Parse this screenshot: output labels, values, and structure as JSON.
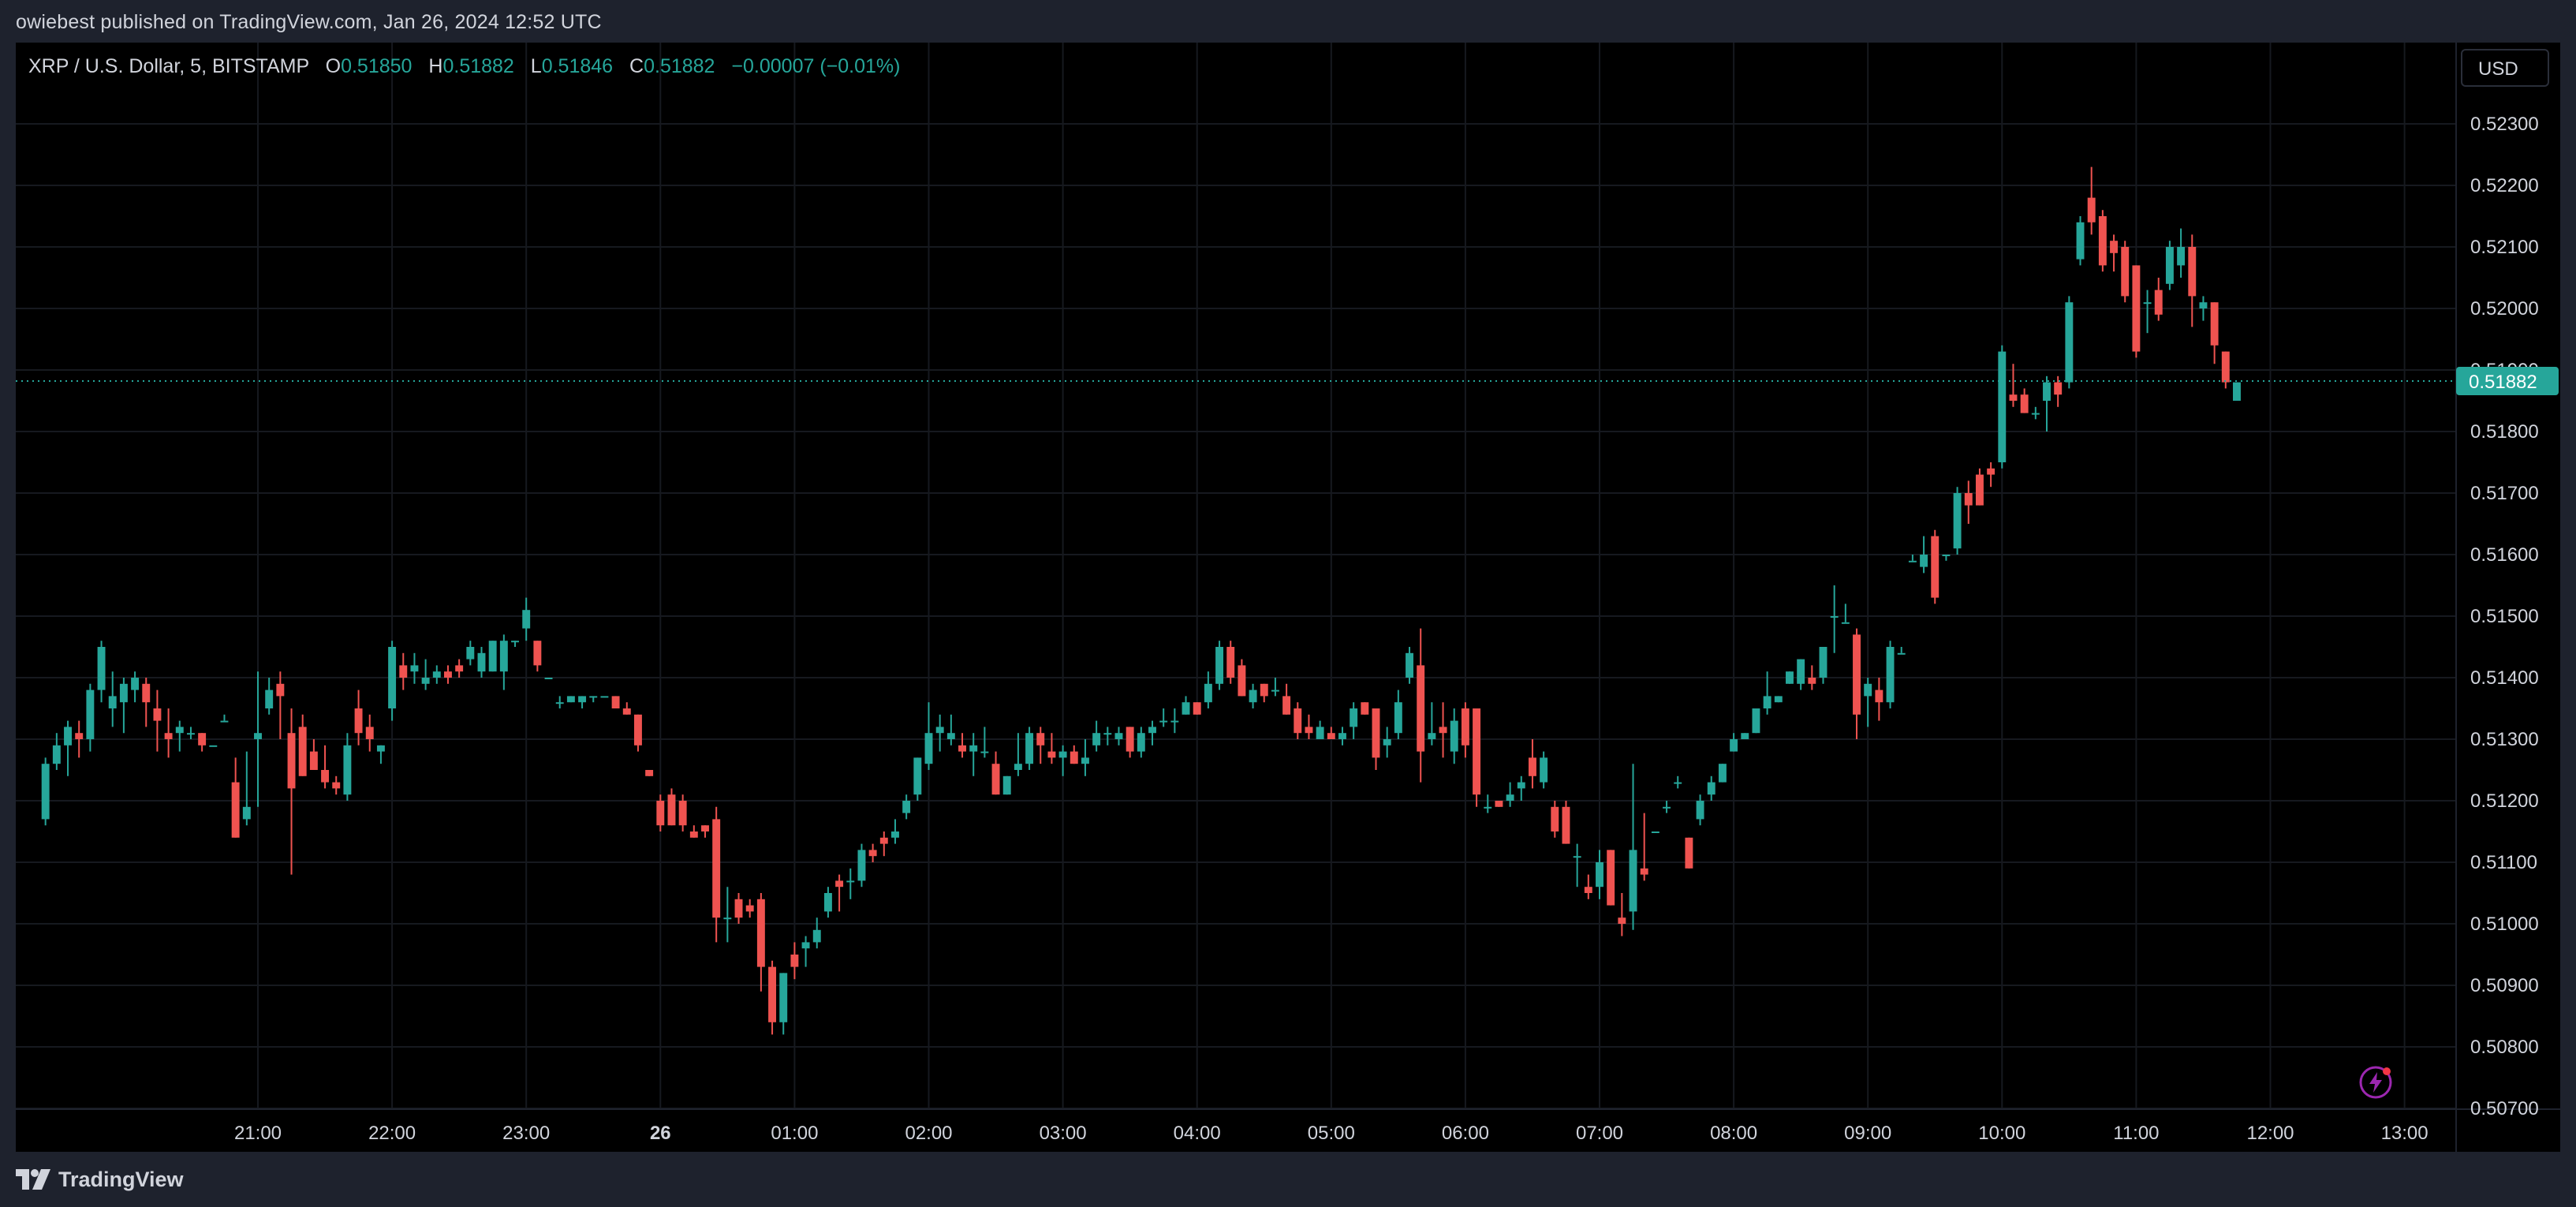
{
  "caption": "owiebest published on TradingView.com, Jan 26, 2024 12:52 UTC",
  "legend": {
    "symbol": "XRP / U.S. Dollar, 5, BITSTAMP",
    "o_label": "O",
    "o_value": "0.51850",
    "h_label": "H",
    "h_value": "0.51882",
    "l_label": "L",
    "l_value": "0.51846",
    "c_label": "C",
    "c_value": "0.51882",
    "change": "−0.00007 (−0.01%)"
  },
  "currency_button": "USD",
  "footer": {
    "brand": "TradingView"
  },
  "colors": {
    "up": "#26a69a",
    "down": "#ef5350",
    "background": "#000000",
    "grid": "#16191f",
    "frame": "#1e222d",
    "last_price_bg": "#26a69a"
  },
  "icons": {
    "bolt": "lightning-bolt-icon",
    "logo": "tradingview-logo-icon"
  },
  "chart_data": {
    "type": "candlestick",
    "title": "XRP / U.S. Dollar, 5, BITSTAMP",
    "ylim": [
      0.5067,
      0.5238
    ],
    "y_ticks": [
      "0.52300",
      "0.52200",
      "0.52100",
      "0.52000",
      "0.51900",
      "0.51800",
      "0.51700",
      "0.51600",
      "0.51500",
      "0.51400",
      "0.51300",
      "0.51200",
      "0.51100",
      "0.51000",
      "0.50900",
      "0.50800",
      "0.50700"
    ],
    "x_ticks": [
      {
        "label": "21:00",
        "bold": false
      },
      {
        "label": "22:00",
        "bold": false
      },
      {
        "label": "23:00",
        "bold": false
      },
      {
        "label": "26",
        "bold": true
      },
      {
        "label": "01:00",
        "bold": false
      },
      {
        "label": "02:00",
        "bold": false
      },
      {
        "label": "03:00",
        "bold": false
      },
      {
        "label": "04:00",
        "bold": false
      },
      {
        "label": "05:00",
        "bold": false
      },
      {
        "label": "06:00",
        "bold": false
      },
      {
        "label": "07:00",
        "bold": false
      },
      {
        "label": "08:00",
        "bold": false
      },
      {
        "label": "09:00",
        "bold": false
      },
      {
        "label": "10:00",
        "bold": false
      },
      {
        "label": "11:00",
        "bold": false
      },
      {
        "label": "12:00",
        "bold": false
      },
      {
        "label": "13:00",
        "bold": false
      }
    ],
    "x_start": "19:25",
    "interval_minutes": 5,
    "last_price": "0.51882",
    "ohlc": [
      [
        0.5117,
        0.5127,
        0.5116,
        0.5126
      ],
      [
        0.5126,
        0.5131,
        0.5125,
        0.5129
      ],
      [
        0.5129,
        0.5133,
        0.5124,
        0.5132
      ],
      [
        0.5131,
        0.5133,
        0.5127,
        0.513
      ],
      [
        0.513,
        0.5139,
        0.5128,
        0.5138
      ],
      [
        0.5138,
        0.5146,
        0.5136,
        0.5145
      ],
      [
        0.5135,
        0.5141,
        0.5132,
        0.5137
      ],
      [
        0.5136,
        0.514,
        0.5131,
        0.5139
      ],
      [
        0.5138,
        0.5141,
        0.5136,
        0.514
      ],
      [
        0.5139,
        0.514,
        0.5132,
        0.5136
      ],
      [
        0.5135,
        0.5138,
        0.5128,
        0.5133
      ],
      [
        0.5131,
        0.5135,
        0.5127,
        0.513
      ],
      [
        0.5131,
        0.5133,
        0.5128,
        0.5132
      ],
      [
        0.5131,
        0.5132,
        0.513,
        0.5131
      ],
      [
        0.5131,
        0.5131,
        0.5128,
        0.5129
      ],
      [
        0.5129,
        0.5129,
        0.5129,
        0.5129
      ],
      [
        0.5133,
        0.5134,
        0.5133,
        0.5133
      ],
      [
        0.5123,
        0.5127,
        0.5114,
        0.5114
      ],
      [
        0.5117,
        0.5128,
        0.5116,
        0.5119
      ],
      [
        0.513,
        0.5141,
        0.5119,
        0.5131
      ],
      [
        0.5135,
        0.514,
        0.5134,
        0.5138
      ],
      [
        0.5139,
        0.5141,
        0.513,
        0.5137
      ],
      [
        0.5131,
        0.5135,
        0.5108,
        0.5122
      ],
      [
        0.5132,
        0.5134,
        0.5124,
        0.5124
      ],
      [
        0.5128,
        0.513,
        0.5125,
        0.5125
      ],
      [
        0.5125,
        0.5129,
        0.5122,
        0.5123
      ],
      [
        0.5123,
        0.5124,
        0.5121,
        0.5122
      ],
      [
        0.5121,
        0.5131,
        0.512,
        0.5129
      ],
      [
        0.5135,
        0.5138,
        0.5129,
        0.5131
      ],
      [
        0.5132,
        0.5134,
        0.5128,
        0.513
      ],
      [
        0.5128,
        0.5129,
        0.5126,
        0.5129
      ],
      [
        0.5135,
        0.5146,
        0.5133,
        0.5145
      ],
      [
        0.5142,
        0.5144,
        0.5138,
        0.514
      ],
      [
        0.5141,
        0.5144,
        0.5139,
        0.5142
      ],
      [
        0.5139,
        0.5143,
        0.5138,
        0.514
      ],
      [
        0.514,
        0.5142,
        0.5139,
        0.5141
      ],
      [
        0.5141,
        0.5142,
        0.5139,
        0.514
      ],
      [
        0.5142,
        0.5143,
        0.514,
        0.5141
      ],
      [
        0.5143,
        0.5146,
        0.5142,
        0.5145
      ],
      [
        0.5141,
        0.5145,
        0.514,
        0.5144
      ],
      [
        0.5141,
        0.5146,
        0.5141,
        0.5146
      ],
      [
        0.5141,
        0.5147,
        0.5138,
        0.5146
      ],
      [
        0.5146,
        0.5146,
        0.5145,
        0.5146
      ],
      [
        0.5148,
        0.5153,
        0.5146,
        0.5151
      ],
      [
        0.5146,
        0.5146,
        0.5141,
        0.5142
      ],
      [
        0.514,
        0.514,
        0.514,
        0.514
      ],
      [
        0.5136,
        0.5137,
        0.5135,
        0.5136
      ],
      [
        0.5136,
        0.5137,
        0.5136,
        0.5137
      ],
      [
        0.5136,
        0.5137,
        0.5135,
        0.5137
      ],
      [
        0.5137,
        0.5137,
        0.5136,
        0.5137
      ],
      [
        0.5137,
        0.5137,
        0.5137,
        0.5137
      ],
      [
        0.5137,
        0.5137,
        0.5135,
        0.5135
      ],
      [
        0.5135,
        0.5136,
        0.5134,
        0.5134
      ],
      [
        0.5134,
        0.5134,
        0.5128,
        0.5129
      ],
      [
        0.5125,
        0.5125,
        0.5124,
        0.5124
      ],
      [
        0.512,
        0.5121,
        0.5115,
        0.5116
      ],
      [
        0.5121,
        0.5122,
        0.5116,
        0.5116
      ],
      [
        0.512,
        0.5121,
        0.5115,
        0.5116
      ],
      [
        0.5115,
        0.5116,
        0.5114,
        0.5114
      ],
      [
        0.5116,
        0.5116,
        0.5114,
        0.5115
      ],
      [
        0.5117,
        0.5119,
        0.5097,
        0.5101
      ],
      [
        0.5101,
        0.5106,
        0.5097,
        0.5101
      ],
      [
        0.5104,
        0.5105,
        0.51,
        0.5101
      ],
      [
        0.5103,
        0.5104,
        0.5101,
        0.5102
      ],
      [
        0.5104,
        0.5105,
        0.5089,
        0.5093
      ],
      [
        0.5093,
        0.5094,
        0.5082,
        0.5084
      ],
      [
        0.5084,
        0.5092,
        0.5082,
        0.5092
      ],
      [
        0.5095,
        0.5097,
        0.5091,
        0.5093
      ],
      [
        0.5096,
        0.5098,
        0.5093,
        0.5097
      ],
      [
        0.5097,
        0.5101,
        0.5096,
        0.5099
      ],
      [
        0.5102,
        0.5106,
        0.5101,
        0.5105
      ],
      [
        0.5107,
        0.5108,
        0.5102,
        0.5106
      ],
      [
        0.5107,
        0.5109,
        0.5104,
        0.5107
      ],
      [
        0.5107,
        0.5113,
        0.5106,
        0.5112
      ],
      [
        0.5112,
        0.5113,
        0.511,
        0.5111
      ],
      [
        0.5114,
        0.5115,
        0.5111,
        0.5113
      ],
      [
        0.5114,
        0.5117,
        0.5113,
        0.5115
      ],
      [
        0.5118,
        0.5121,
        0.5117,
        0.512
      ],
      [
        0.5121,
        0.5127,
        0.512,
        0.5127
      ],
      [
        0.5126,
        0.5136,
        0.5125,
        0.5131
      ],
      [
        0.5131,
        0.5134,
        0.5128,
        0.5132
      ],
      [
        0.513,
        0.5134,
        0.5129,
        0.5131
      ],
      [
        0.5129,
        0.5131,
        0.5127,
        0.5128
      ],
      [
        0.5128,
        0.5131,
        0.5124,
        0.5129
      ],
      [
        0.5128,
        0.5132,
        0.5127,
        0.5128
      ],
      [
        0.5126,
        0.5128,
        0.5121,
        0.5121
      ],
      [
        0.5121,
        0.5124,
        0.5121,
        0.5124
      ],
      [
        0.5125,
        0.5131,
        0.5124,
        0.5126
      ],
      [
        0.5126,
        0.5132,
        0.5125,
        0.5131
      ],
      [
        0.5131,
        0.5132,
        0.5126,
        0.5129
      ],
      [
        0.5128,
        0.5131,
        0.5126,
        0.5127
      ],
      [
        0.5127,
        0.5129,
        0.5124,
        0.5128
      ],
      [
        0.5128,
        0.5129,
        0.5126,
        0.5126
      ],
      [
        0.5126,
        0.513,
        0.5124,
        0.5127
      ],
      [
        0.5129,
        0.5133,
        0.5128,
        0.5131
      ],
      [
        0.5131,
        0.5132,
        0.5129,
        0.5131
      ],
      [
        0.513,
        0.5132,
        0.5129,
        0.5131
      ],
      [
        0.5132,
        0.5132,
        0.5127,
        0.5128
      ],
      [
        0.5128,
        0.5132,
        0.5127,
        0.5131
      ],
      [
        0.5131,
        0.5133,
        0.5129,
        0.5132
      ],
      [
        0.5133,
        0.5135,
        0.5132,
        0.5133
      ],
      [
        0.5133,
        0.5135,
        0.5131,
        0.5133
      ],
      [
        0.5134,
        0.5137,
        0.5134,
        0.5136
      ],
      [
        0.5136,
        0.5136,
        0.5134,
        0.5134
      ],
      [
        0.5136,
        0.5141,
        0.5135,
        0.5139
      ],
      [
        0.5139,
        0.5146,
        0.5138,
        0.5145
      ],
      [
        0.5145,
        0.5146,
        0.5139,
        0.514
      ],
      [
        0.5142,
        0.5143,
        0.5137,
        0.5137
      ],
      [
        0.5136,
        0.5139,
        0.5135,
        0.5138
      ],
      [
        0.5139,
        0.5139,
        0.5136,
        0.5137
      ],
      [
        0.5138,
        0.514,
        0.5137,
        0.5138
      ],
      [
        0.5137,
        0.5139,
        0.5134,
        0.5134
      ],
      [
        0.5135,
        0.5136,
        0.513,
        0.5131
      ],
      [
        0.5132,
        0.5134,
        0.513,
        0.5131
      ],
      [
        0.513,
        0.5133,
        0.513,
        0.5132
      ],
      [
        0.5131,
        0.5132,
        0.513,
        0.513
      ],
      [
        0.513,
        0.5132,
        0.5129,
        0.5131
      ],
      [
        0.5132,
        0.5136,
        0.513,
        0.5135
      ],
      [
        0.5136,
        0.5136,
        0.5134,
        0.5134
      ],
      [
        0.5135,
        0.5135,
        0.5125,
        0.5127
      ],
      [
        0.5129,
        0.5132,
        0.5127,
        0.513
      ],
      [
        0.5131,
        0.5138,
        0.513,
        0.5136
      ],
      [
        0.514,
        0.5145,
        0.5139,
        0.5144
      ],
      [
        0.5142,
        0.5148,
        0.5123,
        0.5128
      ],
      [
        0.513,
        0.5136,
        0.5129,
        0.5131
      ],
      [
        0.5132,
        0.5136,
        0.5127,
        0.5131
      ],
      [
        0.5128,
        0.5135,
        0.5126,
        0.5133
      ],
      [
        0.5135,
        0.5136,
        0.5127,
        0.5129
      ],
      [
        0.5135,
        0.5135,
        0.5119,
        0.5121
      ],
      [
        0.5119,
        0.5121,
        0.5118,
        0.5119
      ],
      [
        0.512,
        0.512,
        0.5119,
        0.5119
      ],
      [
        0.512,
        0.5123,
        0.5119,
        0.5121
      ],
      [
        0.5122,
        0.5124,
        0.512,
        0.5123
      ],
      [
        0.5127,
        0.513,
        0.5122,
        0.5124
      ],
      [
        0.5123,
        0.5128,
        0.5122,
        0.5127
      ],
      [
        0.5119,
        0.512,
        0.5114,
        0.5115
      ],
      [
        0.5119,
        0.512,
        0.5113,
        0.5113
      ],
      [
        0.5111,
        0.5113,
        0.5106,
        0.5111
      ],
      [
        0.5106,
        0.5108,
        0.5104,
        0.5105
      ],
      [
        0.5106,
        0.5112,
        0.5104,
        0.511
      ],
      [
        0.5112,
        0.5112,
        0.5103,
        0.5103
      ],
      [
        0.5101,
        0.5105,
        0.5098,
        0.51
      ],
      [
        0.5102,
        0.5126,
        0.5099,
        0.5112
      ],
      [
        0.5109,
        0.5118,
        0.5107,
        0.5108
      ],
      [
        0.5115,
        0.5115,
        0.5115,
        0.5115
      ],
      [
        0.5119,
        0.512,
        0.5118,
        0.5119
      ],
      [
        0.5123,
        0.5124,
        0.5122,
        0.5123
      ],
      [
        0.5114,
        0.5114,
        0.5109,
        0.5109
      ],
      [
        0.5117,
        0.5121,
        0.5116,
        0.512
      ],
      [
        0.5121,
        0.5124,
        0.512,
        0.5123
      ],
      [
        0.5123,
        0.5126,
        0.5123,
        0.5126
      ],
      [
        0.5128,
        0.5131,
        0.5128,
        0.513
      ],
      [
        0.513,
        0.5131,
        0.513,
        0.5131
      ],
      [
        0.5131,
        0.5135,
        0.5131,
        0.5135
      ],
      [
        0.5135,
        0.5141,
        0.5134,
        0.5137
      ],
      [
        0.5136,
        0.5137,
        0.5136,
        0.5137
      ],
      [
        0.5139,
        0.5141,
        0.5139,
        0.5141
      ],
      [
        0.5139,
        0.5143,
        0.5138,
        0.5143
      ],
      [
        0.514,
        0.5142,
        0.5138,
        0.5139
      ],
      [
        0.514,
        0.5145,
        0.5139,
        0.5145
      ],
      [
        0.515,
        0.5155,
        0.5144,
        0.515
      ],
      [
        0.5149,
        0.5152,
        0.5149,
        0.5149
      ],
      [
        0.5147,
        0.5148,
        0.513,
        0.5134
      ],
      [
        0.5137,
        0.514,
        0.5132,
        0.5139
      ],
      [
        0.5138,
        0.514,
        0.5133,
        0.5136
      ],
      [
        0.5136,
        0.5146,
        0.5135,
        0.5145
      ],
      [
        0.5144,
        0.5145,
        0.5144,
        0.5144
      ],
      [
        0.5159,
        0.516,
        0.5159,
        0.5159
      ],
      [
        0.5158,
        0.5163,
        0.5157,
        0.516
      ],
      [
        0.5163,
        0.5164,
        0.5152,
        0.5153
      ],
      [
        0.516,
        0.516,
        0.5159,
        0.516
      ],
      [
        0.5161,
        0.5171,
        0.516,
        0.517
      ],
      [
        0.517,
        0.5172,
        0.5165,
        0.5168
      ],
      [
        0.5173,
        0.5174,
        0.5168,
        0.5168
      ],
      [
        0.5174,
        0.5175,
        0.5171,
        0.5173
      ],
      [
        0.5175,
        0.5194,
        0.5174,
        0.5193
      ],
      [
        0.5186,
        0.5191,
        0.5184,
        0.5185
      ],
      [
        0.5186,
        0.5187,
        0.5183,
        0.5183
      ],
      [
        0.5183,
        0.5184,
        0.5182,
        0.5183
      ],
      [
        0.5185,
        0.5189,
        0.518,
        0.5188
      ],
      [
        0.5188,
        0.5189,
        0.5184,
        0.5186
      ],
      [
        0.5188,
        0.5202,
        0.5187,
        0.5201
      ],
      [
        0.5208,
        0.5215,
        0.5207,
        0.5214
      ],
      [
        0.5218,
        0.5223,
        0.5212,
        0.5214
      ],
      [
        0.5215,
        0.5216,
        0.5206,
        0.5207
      ],
      [
        0.5211,
        0.5212,
        0.5206,
        0.5209
      ],
      [
        0.521,
        0.5211,
        0.5201,
        0.5202
      ],
      [
        0.5207,
        0.5207,
        0.5192,
        0.5193
      ],
      [
        0.5201,
        0.5203,
        0.5196,
        0.5201
      ],
      [
        0.5203,
        0.5205,
        0.5198,
        0.5199
      ],
      [
        0.5204,
        0.5211,
        0.5203,
        0.521
      ],
      [
        0.5207,
        0.5213,
        0.5205,
        0.521
      ],
      [
        0.521,
        0.5212,
        0.5197,
        0.5202
      ],
      [
        0.52,
        0.5202,
        0.5198,
        0.5201
      ],
      [
        0.5201,
        0.5201,
        0.5191,
        0.5194
      ],
      [
        0.5193,
        0.5193,
        0.5187,
        0.5188
      ],
      [
        0.5185,
        0.5188,
        0.5185,
        0.5188
      ]
    ]
  }
}
